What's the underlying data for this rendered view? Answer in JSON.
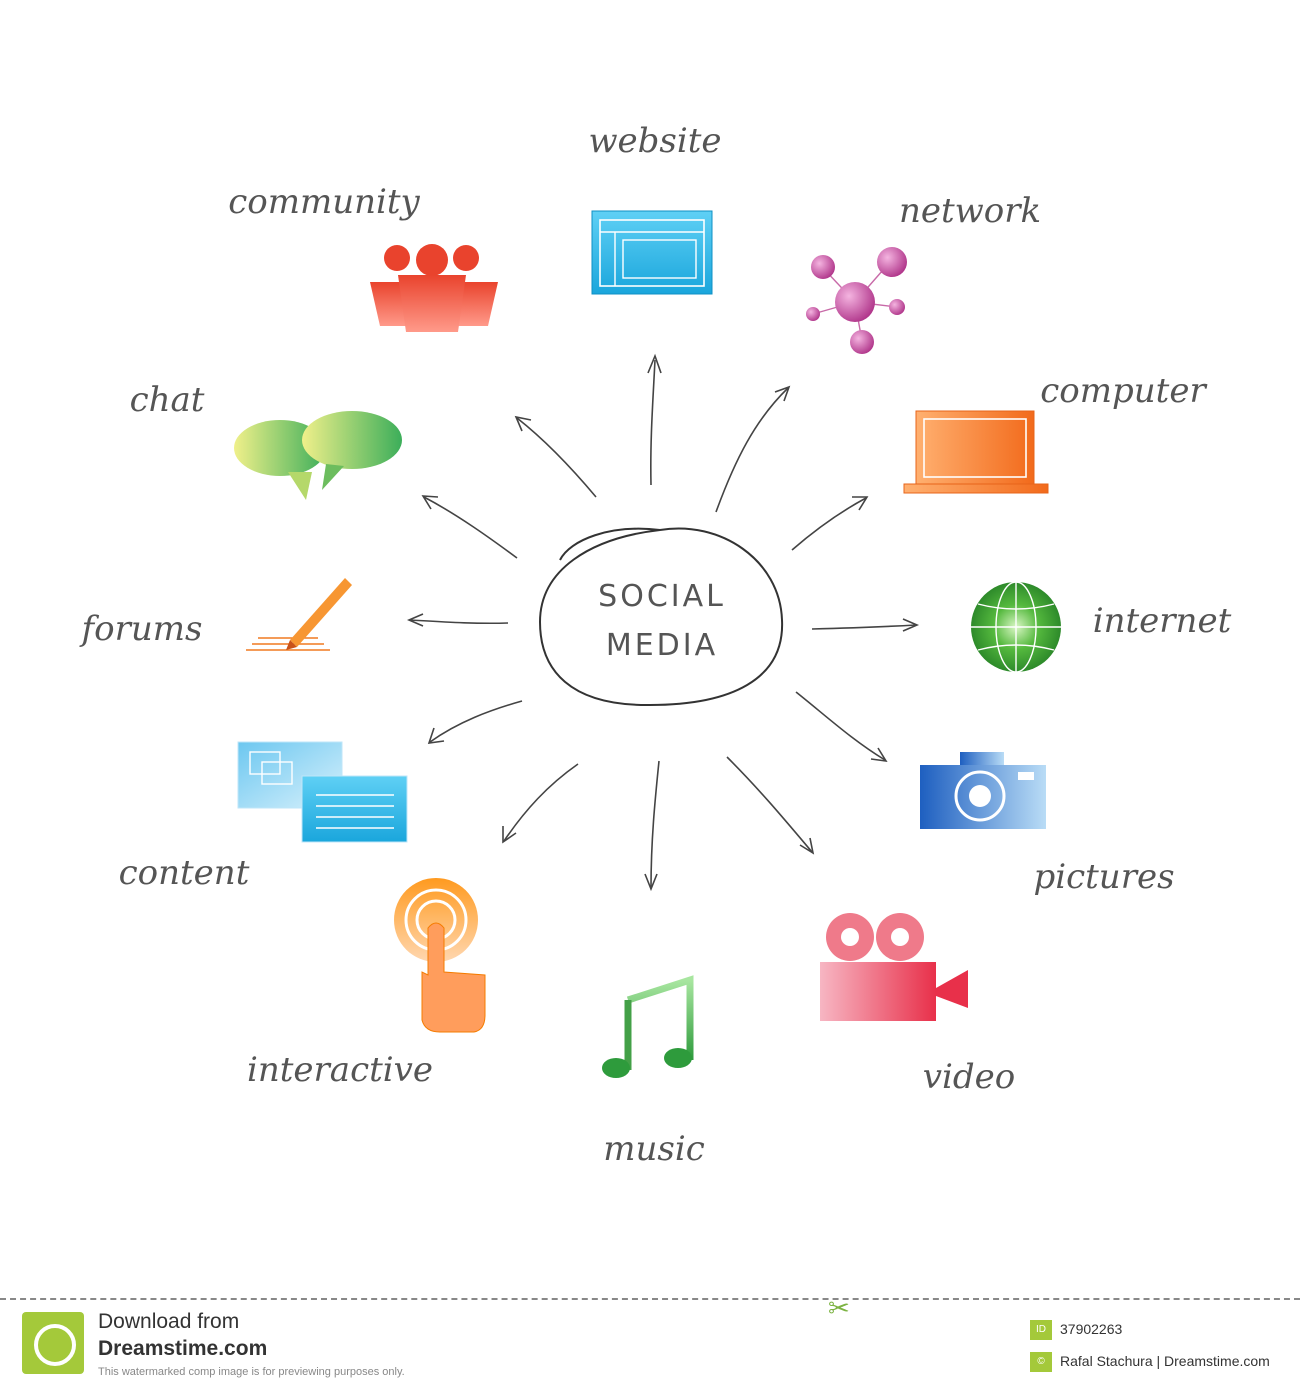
{
  "center": {
    "line1": "SOCIAL",
    "line2": "MEDIA"
  },
  "nodes": [
    {
      "id": "website",
      "label": "website",
      "icon": "website-icon",
      "color": "#29b6e8"
    },
    {
      "id": "network",
      "label": "network",
      "icon": "network-icon",
      "color": "#c0459a"
    },
    {
      "id": "computer",
      "label": "computer",
      "icon": "laptop-icon",
      "color": "#f28c28"
    },
    {
      "id": "internet",
      "label": "internet",
      "icon": "globe-icon",
      "color": "#3aa635"
    },
    {
      "id": "pictures",
      "label": "pictures",
      "icon": "camera-icon",
      "color": "#2f6fc9"
    },
    {
      "id": "video",
      "label": "video",
      "icon": "video-camera-icon",
      "color": "#e8506a"
    },
    {
      "id": "music",
      "label": "music",
      "icon": "music-note-icon",
      "color": "#43a047"
    },
    {
      "id": "interactive",
      "label": "interactive",
      "icon": "touch-icon",
      "color": "#f57c00"
    },
    {
      "id": "content",
      "label": "content",
      "icon": "content-icon",
      "color": "#4fb3e8"
    },
    {
      "id": "forums",
      "label": "forums",
      "icon": "pencil-icon",
      "color": "#f07a20"
    },
    {
      "id": "chat",
      "label": "chat",
      "icon": "chat-bubbles-icon",
      "color": "#7cc36b"
    },
    {
      "id": "community",
      "label": "community",
      "icon": "people-icon",
      "color": "#e94b35"
    }
  ],
  "footer": {
    "download_line1": "Download from",
    "download_line2": "Dreamstime.com",
    "disclaimer": "This watermarked comp image is for previewing purposes only.",
    "id_badge": "ID",
    "image_id": "37902263",
    "credit": "Rafal Stachura | Dreamstime.com"
  }
}
